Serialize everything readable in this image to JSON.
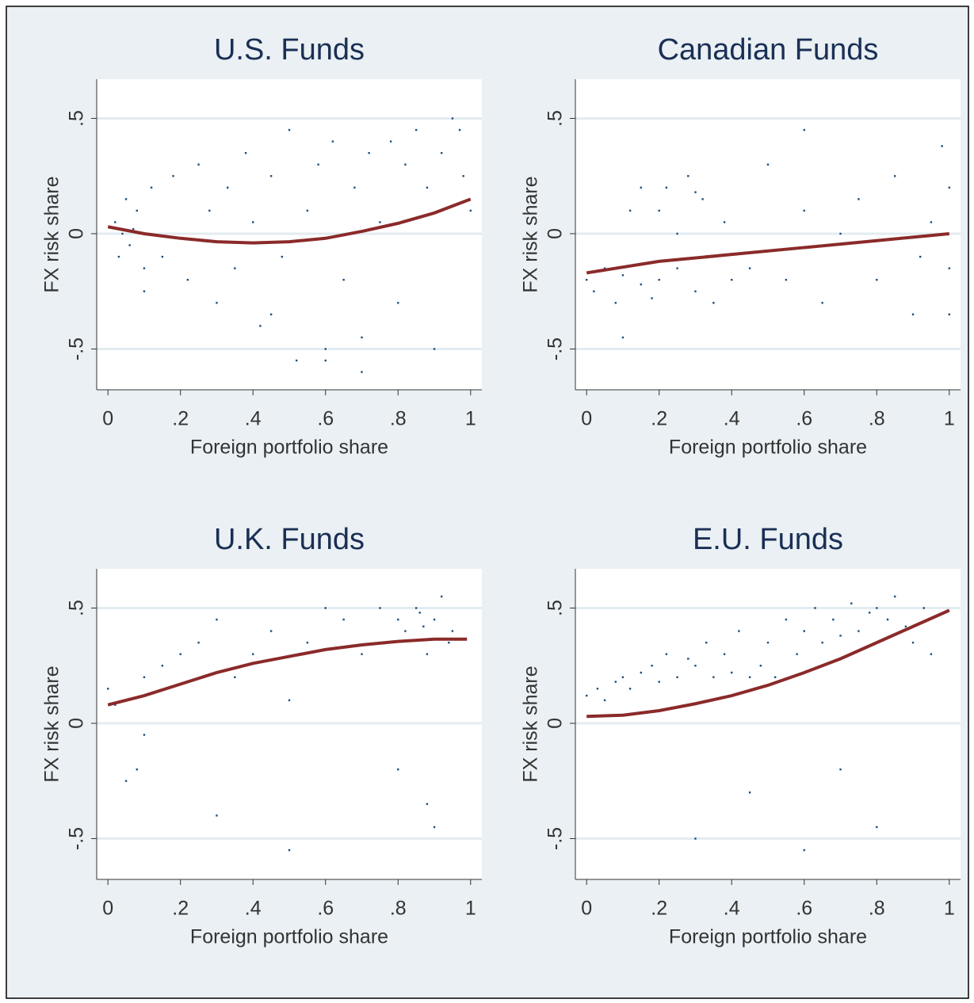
{
  "chart_data": [
    {
      "type": "scatter",
      "title": "U.S. Funds",
      "xlabel": "Foreign portfolio share",
      "ylabel": "FX risk share",
      "xlim": [
        -0.031,
        1.031
      ],
      "ylim": [
        -0.677,
        0.67
      ],
      "xticks": [
        0,
        {
          "value": 0.2,
          "label": ".2"
        },
        {
          "value": 0.4,
          "label": ".4"
        },
        {
          "value": 0.6,
          "label": ".6"
        },
        {
          "value": 0.8,
          "label": ".8"
        },
        1
      ],
      "yticks": [
        {
          "value": -0.5,
          "label": "-.5"
        },
        0,
        {
          "value": 0.5,
          "label": ".5"
        }
      ],
      "grid": true,
      "series": [
        {
          "type": "scatter",
          "color": "#1f4e79",
          "x": [
            0.02,
            0.03,
            0.05,
            0.06,
            0.08,
            0.1,
            0.04,
            0.07,
            0.12,
            0.15,
            0.18,
            0.22,
            0.25,
            0.28,
            0.3,
            0.33,
            0.35,
            0.38,
            0.4,
            0.42,
            0.45,
            0.48,
            0.5,
            0.52,
            0.55,
            0.58,
            0.6,
            0.62,
            0.65,
            0.68,
            0.7,
            0.72,
            0.75,
            0.78,
            0.8,
            0.82,
            0.85,
            0.88,
            0.9,
            0.92,
            0.95,
            0.98,
            1.0,
            0.97,
            0.6,
            0.7,
            0.45,
            0.1
          ],
          "y": [
            0.05,
            -0.1,
            0.15,
            -0.05,
            0.1,
            -0.15,
            0.0,
            0.02,
            0.2,
            -0.1,
            0.25,
            -0.2,
            0.3,
            0.1,
            -0.3,
            0.2,
            -0.15,
            0.35,
            0.05,
            -0.4,
            0.25,
            -0.1,
            0.45,
            -0.55,
            0.1,
            0.3,
            -0.5,
            0.4,
            -0.2,
            0.2,
            -0.45,
            0.35,
            0.05,
            0.4,
            -0.3,
            0.3,
            0.45,
            0.2,
            -0.5,
            0.35,
            0.5,
            0.25,
            0.1,
            0.45,
            -0.55,
            -0.6,
            -0.35,
            -0.25
          ]
        },
        {
          "type": "line",
          "color": "#8b2a2a",
          "x": [
            0,
            0.1,
            0.2,
            0.3,
            0.4,
            0.5,
            0.6,
            0.7,
            0.8,
            0.9,
            1
          ],
          "y": [
            0.03,
            0.0,
            -0.02,
            -0.035,
            -0.04,
            -0.035,
            -0.02,
            0.01,
            0.045,
            0.09,
            0.15
          ]
        }
      ]
    },
    {
      "type": "scatter",
      "title": "Canadian Funds",
      "xlabel": "Foreign portfolio share",
      "ylabel": "FX risk share",
      "xlim": [
        -0.031,
        1.031
      ],
      "ylim": [
        -0.677,
        0.67
      ],
      "xticks": [
        0,
        {
          "value": 0.2,
          "label": ".2"
        },
        {
          "value": 0.4,
          "label": ".4"
        },
        {
          "value": 0.6,
          "label": ".6"
        },
        {
          "value": 0.8,
          "label": ".8"
        },
        1
      ],
      "yticks": [
        {
          "value": -0.5,
          "label": "-.5"
        },
        0,
        {
          "value": 0.5,
          "label": ".5"
        }
      ],
      "grid": true,
      "series": [
        {
          "type": "scatter",
          "color": "#1f4e79",
          "x": [
            0.0,
            0.02,
            0.05,
            0.08,
            0.1,
            0.12,
            0.15,
            0.18,
            0.2,
            0.22,
            0.25,
            0.28,
            0.3,
            0.32,
            0.35,
            0.38,
            0.4,
            0.15,
            0.2,
            0.25,
            0.3,
            0.35,
            0.1,
            0.45,
            0.5,
            0.55,
            0.6,
            0.65,
            0.7,
            0.75,
            0.8,
            0.85,
            0.9,
            0.95,
            0.98,
            1.0,
            1.0,
            1.0,
            0.6,
            0.92
          ],
          "y": [
            -0.2,
            -0.25,
            -0.15,
            -0.3,
            -0.18,
            0.1,
            -0.22,
            -0.28,
            -0.2,
            0.2,
            -0.15,
            0.25,
            -0.25,
            0.15,
            -0.1,
            0.05,
            -0.2,
            0.2,
            0.1,
            0.0,
            0.18,
            -0.3,
            -0.45,
            -0.15,
            0.3,
            -0.2,
            0.1,
            -0.3,
            0.0,
            0.15,
            -0.2,
            0.25,
            -0.35,
            0.05,
            0.38,
            0.2,
            -0.15,
            -0.35,
            0.45,
            -0.1
          ]
        },
        {
          "type": "line",
          "color": "#8b2a2a",
          "x": [
            0,
            0.2,
            0.4,
            0.6,
            0.8,
            1
          ],
          "y": [
            -0.17,
            -0.12,
            -0.09,
            -0.06,
            -0.03,
            0.0
          ]
        }
      ]
    },
    {
      "type": "scatter",
      "title": "U.K. Funds",
      "xlabel": "Foreign portfolio share",
      "ylabel": "FX risk share",
      "xlim": [
        -0.031,
        1.031
      ],
      "ylim": [
        -0.677,
        0.67
      ],
      "xticks": [
        0,
        {
          "value": 0.2,
          "label": ".2"
        },
        {
          "value": 0.4,
          "label": ".4"
        },
        {
          "value": 0.6,
          "label": ".6"
        },
        {
          "value": 0.8,
          "label": ".8"
        },
        1
      ],
      "yticks": [
        {
          "value": -0.5,
          "label": "-.5"
        },
        0,
        {
          "value": 0.5,
          "label": ".5"
        }
      ],
      "grid": true,
      "series": [
        {
          "type": "scatter",
          "color": "#1f4e79",
          "x": [
            0.0,
            0.02,
            0.05,
            0.08,
            0.1,
            0.15,
            0.2,
            0.25,
            0.3,
            0.35,
            0.4,
            0.45,
            0.5,
            0.55,
            0.6,
            0.65,
            0.7,
            0.75,
            0.78,
            0.8,
            0.82,
            0.85,
            0.87,
            0.88,
            0.9,
            0.92,
            0.94,
            0.95,
            0.86,
            0.9,
            0.05,
            0.3,
            0.5,
            0.8,
            0.88,
            0.1
          ],
          "y": [
            0.15,
            0.08,
            0.1,
            -0.2,
            0.2,
            0.25,
            0.3,
            0.35,
            0.45,
            0.2,
            0.3,
            0.4,
            0.1,
            0.35,
            0.5,
            0.45,
            0.3,
            0.5,
            0.35,
            0.45,
            0.4,
            0.5,
            0.42,
            0.3,
            0.45,
            0.55,
            0.35,
            0.4,
            0.48,
            -0.45,
            -0.25,
            -0.4,
            -0.55,
            -0.2,
            -0.35,
            -0.05
          ]
        },
        {
          "type": "line",
          "color": "#8b2a2a",
          "x": [
            0,
            0.1,
            0.2,
            0.3,
            0.4,
            0.5,
            0.6,
            0.7,
            0.8,
            0.9,
            0.99
          ],
          "y": [
            0.08,
            0.12,
            0.17,
            0.22,
            0.26,
            0.29,
            0.32,
            0.34,
            0.355,
            0.365,
            0.365
          ]
        }
      ]
    },
    {
      "type": "scatter",
      "title": "E.U. Funds",
      "xlabel": "Foreign portfolio share",
      "ylabel": "FX risk share",
      "xlim": [
        -0.031,
        1.031
      ],
      "ylim": [
        -0.677,
        0.67
      ],
      "xticks": [
        0,
        {
          "value": 0.2,
          "label": ".2"
        },
        {
          "value": 0.4,
          "label": ".4"
        },
        {
          "value": 0.6,
          "label": ".6"
        },
        {
          "value": 0.8,
          "label": ".8"
        },
        1
      ],
      "yticks": [
        {
          "value": -0.5,
          "label": "-.5"
        },
        0,
        {
          "value": 0.5,
          "label": ".5"
        }
      ],
      "grid": true,
      "series": [
        {
          "type": "scatter",
          "color": "#1f4e79",
          "x": [
            0.0,
            0.03,
            0.05,
            0.08,
            0.1,
            0.12,
            0.15,
            0.18,
            0.2,
            0.22,
            0.25,
            0.28,
            0.3,
            0.33,
            0.35,
            0.38,
            0.4,
            0.42,
            0.45,
            0.48,
            0.5,
            0.52,
            0.55,
            0.58,
            0.6,
            0.63,
            0.65,
            0.68,
            0.7,
            0.73,
            0.75,
            0.78,
            0.8,
            0.83,
            0.85,
            0.88,
            0.9,
            0.93,
            0.95,
            0.3,
            0.45,
            0.6,
            0.7,
            0.8
          ],
          "y": [
            0.12,
            0.15,
            0.1,
            0.18,
            0.2,
            0.15,
            0.22,
            0.25,
            0.18,
            0.3,
            0.2,
            0.28,
            0.25,
            0.35,
            0.2,
            0.3,
            0.22,
            0.4,
            0.2,
            0.25,
            0.35,
            0.2,
            0.45,
            0.3,
            0.4,
            0.5,
            0.35,
            0.45,
            0.38,
            0.52,
            0.4,
            0.48,
            0.5,
            0.45,
            0.55,
            0.42,
            0.35,
            0.5,
            0.3,
            -0.5,
            -0.3,
            -0.55,
            -0.2,
            -0.45
          ]
        },
        {
          "type": "line",
          "color": "#8b2a2a",
          "x": [
            0,
            0.1,
            0.2,
            0.3,
            0.4,
            0.5,
            0.6,
            0.7,
            0.8,
            0.9,
            1
          ],
          "y": [
            0.03,
            0.035,
            0.055,
            0.085,
            0.12,
            0.165,
            0.22,
            0.28,
            0.35,
            0.42,
            0.49
          ]
        }
      ]
    }
  ]
}
